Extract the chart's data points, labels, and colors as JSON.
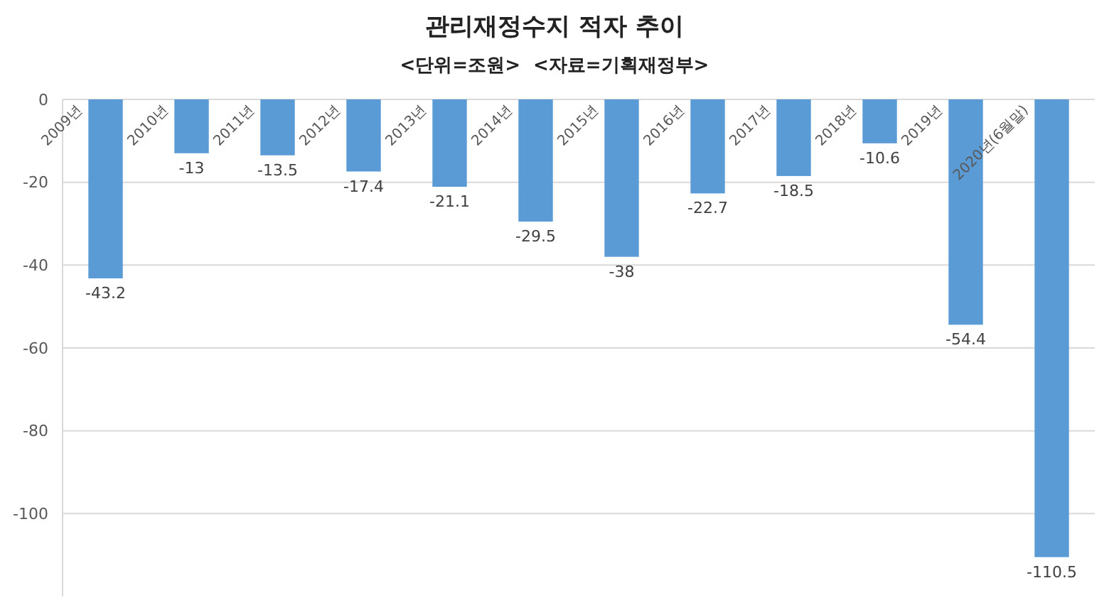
{
  "chart_data": {
    "type": "bar",
    "title": "관리재정수지 적자 추이",
    "subtitle": "<단위=조원>  <자료=기획재정부>",
    "categories": [
      "2009년",
      "2010년",
      "2011년",
      "2012년",
      "2013년",
      "2014년",
      "2015년",
      "2016년",
      "2017년",
      "2018년",
      "2019년",
      "2020년(6월말)"
    ],
    "values": [
      -43.2,
      -13,
      -13.5,
      -17.4,
      -21.1,
      -29.5,
      -38,
      -22.7,
      -18.5,
      -10.6,
      -54.4,
      -110.5
    ],
    "color": "#5b9bd5",
    "ylim": [
      -120,
      0
    ],
    "yticks": [
      0,
      -20,
      -40,
      -60,
      -80,
      -100
    ],
    "grid": "y",
    "data_labels": true
  }
}
